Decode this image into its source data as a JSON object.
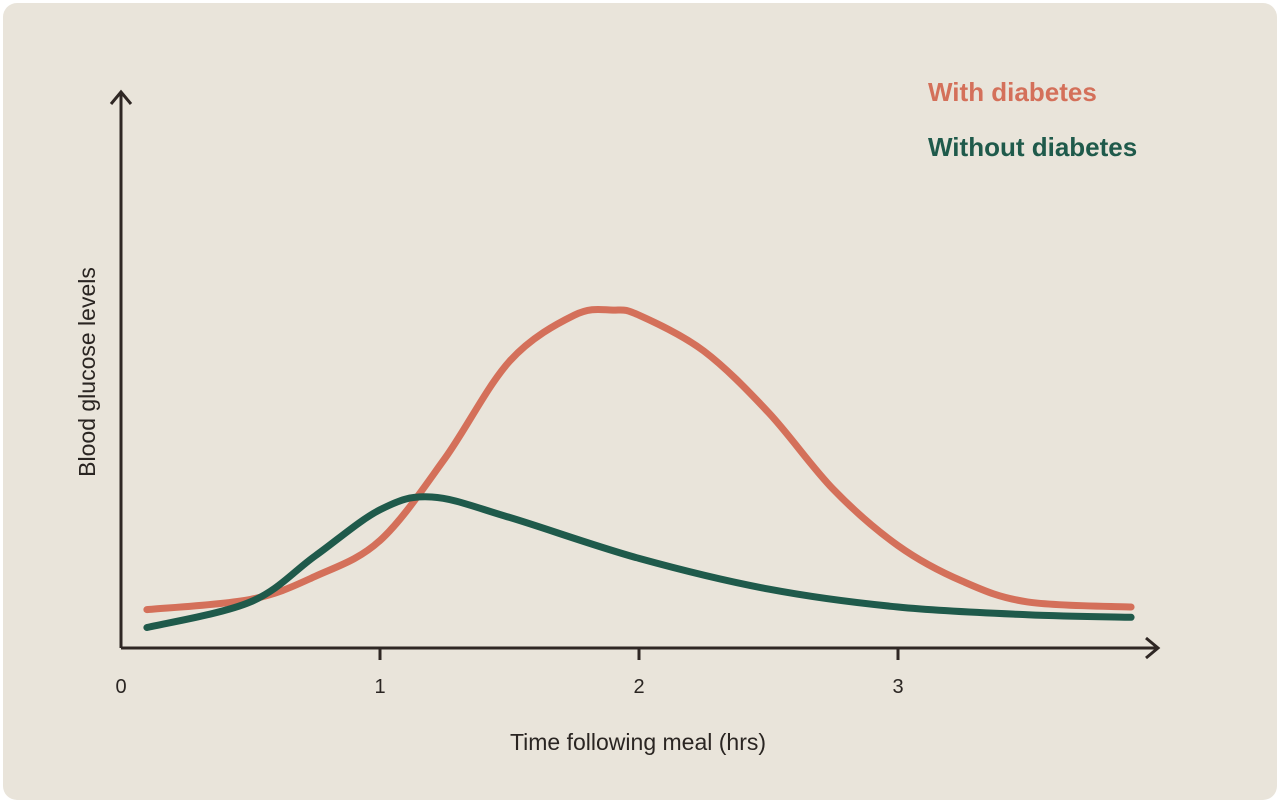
{
  "chart_data": {
    "type": "line",
    "xlabel": "Time following meal (hrs)",
    "ylabel": "Blood glucose levels",
    "x_ticks": [
      "0",
      "1",
      "2",
      "3"
    ],
    "xlim": [
      0,
      4
    ],
    "ylim": [
      0,
      10
    ],
    "y_ticks": [],
    "grid": false,
    "legend_position": "top-right",
    "series": [
      {
        "name": "With diabetes",
        "color": "#d4705a",
        "x": [
          0.1,
          0.5,
          0.75,
          1.0,
          1.25,
          1.5,
          1.75,
          1.9,
          2.0,
          2.25,
          2.5,
          2.75,
          3.0,
          3.25,
          3.5,
          3.9
        ],
        "y": [
          0.75,
          0.95,
          1.4,
          2.1,
          3.7,
          5.6,
          6.5,
          6.6,
          6.5,
          5.8,
          4.6,
          3.1,
          2.0,
          1.3,
          0.9,
          0.8
        ]
      },
      {
        "name": "Without diabetes",
        "color": "#1f5a4b",
        "x": [
          0.1,
          0.5,
          0.75,
          1.0,
          1.2,
          1.5,
          2.0,
          2.5,
          3.0,
          3.5,
          3.9
        ],
        "y": [
          0.4,
          0.9,
          1.8,
          2.7,
          2.95,
          2.55,
          1.75,
          1.15,
          0.8,
          0.65,
          0.6
        ]
      }
    ]
  }
}
